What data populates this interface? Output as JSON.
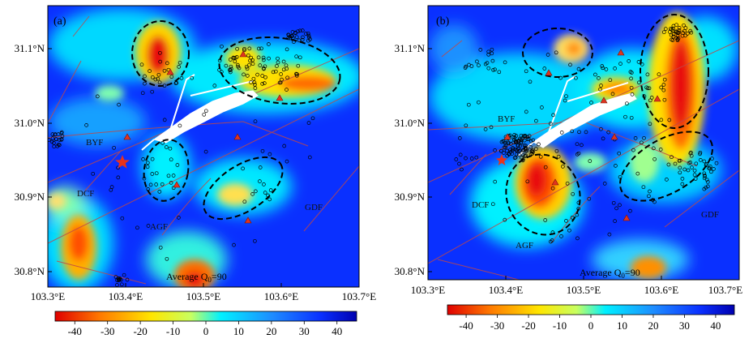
{
  "colors": {
    "scale": [
      "#d7191c",
      "#ff6a00",
      "#ffd000",
      "#ffff40",
      "#7fffb0",
      "#00e0ff",
      "#1e90ff",
      "#0a3bff",
      "#0000c8"
    ],
    "event": "#000000",
    "station": "#e0341f",
    "fault": "#b03a3a",
    "river": "#ffffff"
  },
  "panels": [
    {
      "label": "(a)",
      "x_ticks": [
        "103.3°E",
        "103.4°E",
        "103.5°E",
        "103.6°E",
        "103.7°E"
      ],
      "y_ticks": [
        "31.1°N",
        "31.0°N",
        "30.9°N",
        "30.8°N"
      ],
      "fault_labels": [
        "BYF",
        "DCF",
        "AGF",
        "GDF"
      ],
      "average": "Average Q",
      "average_sub": "0",
      "average_value": "=90",
      "colorbar_ticks": [
        "-40",
        "-30",
        "-20",
        "-10",
        "0",
        "10",
        "20",
        "30",
        "40"
      ]
    },
    {
      "label": "(b)",
      "x_ticks": [
        "103.3°E",
        "103.4°E",
        "103.5°E",
        "103.6°E",
        "103.7°E"
      ],
      "y_ticks": [
        "31.1°N",
        "31.0°N",
        "30.9°N",
        "30.8°N"
      ],
      "fault_labels": [
        "BYF",
        "DCF",
        "AGF",
        "GDF"
      ],
      "average": "Average Q",
      "average_sub": "0",
      "average_value": "=90",
      "colorbar_ticks": [
        "-40",
        "-30",
        "-20",
        "-10",
        "0",
        "10",
        "20",
        "30",
        "40"
      ]
    }
  ]
}
